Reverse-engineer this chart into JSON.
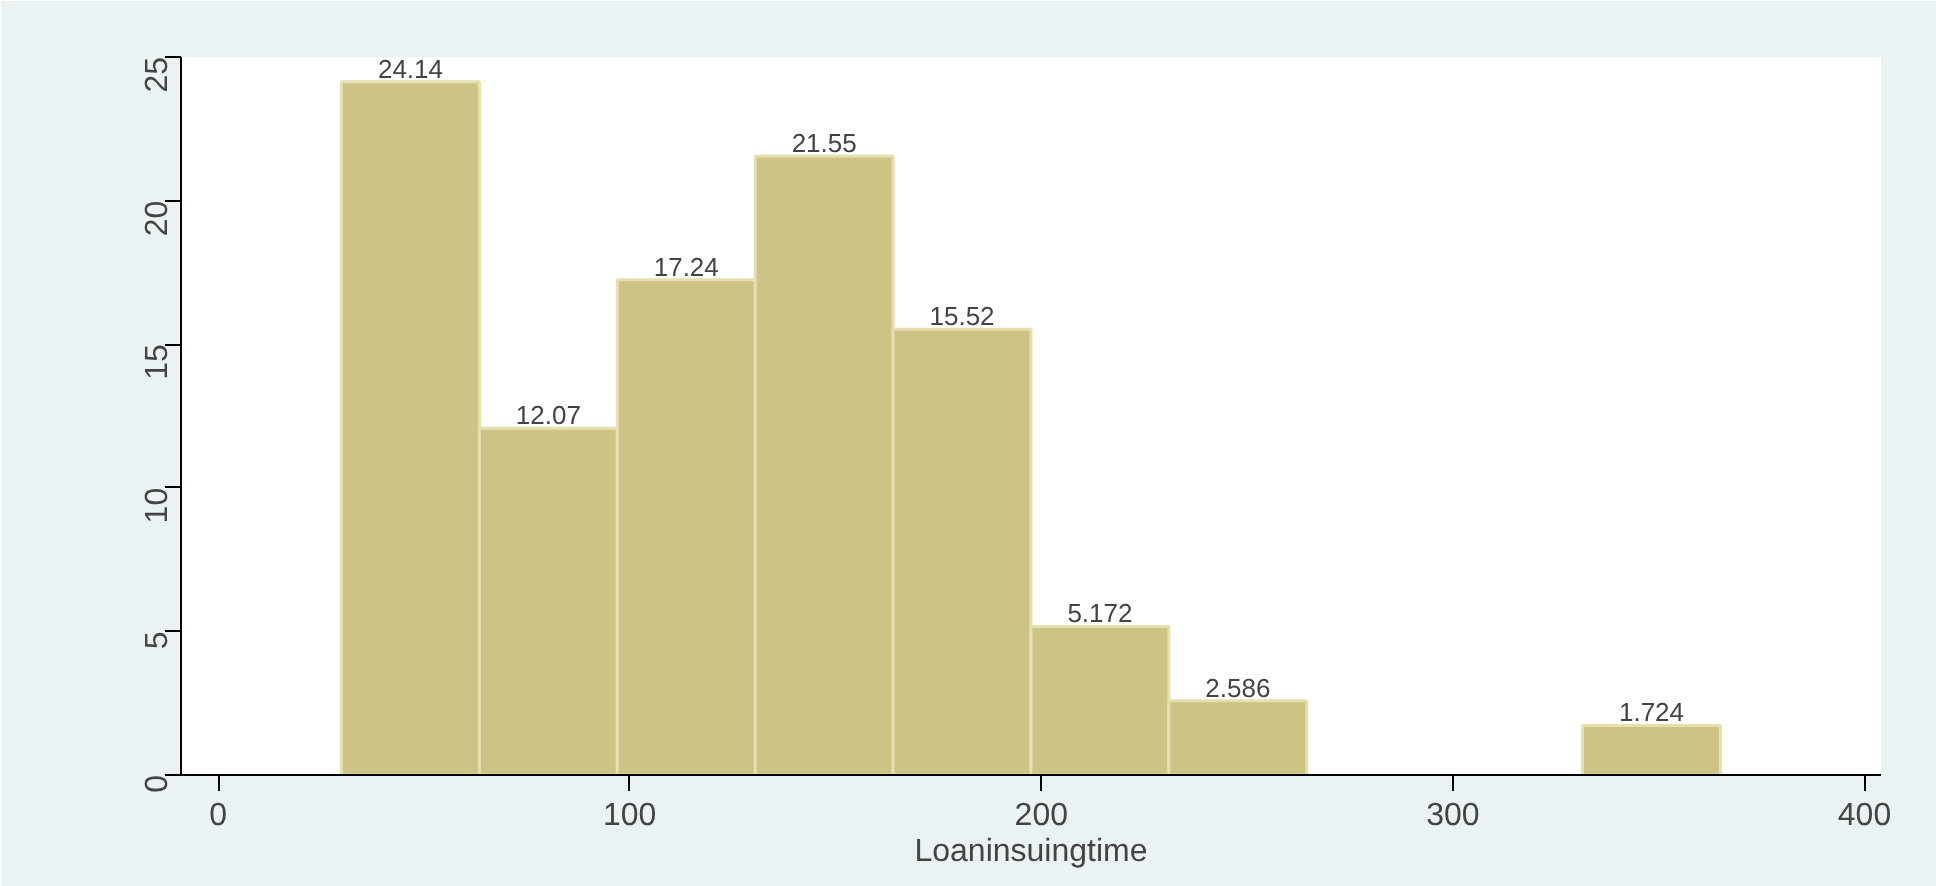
{
  "chart_data": {
    "type": "histogram",
    "xlabel": "Loaninsuingtime",
    "bins": [
      30,
      63.5,
      97,
      130.5,
      164,
      197.5,
      231,
      264.5,
      298,
      331.5,
      365
    ],
    "values": [
      24.14,
      12.07,
      17.24,
      21.55,
      15.52,
      5.172,
      2.586,
      0,
      0,
      1.724
    ],
    "value_labels": [
      "24.14",
      "12.07",
      "17.24",
      "21.55",
      "15.52",
      "5.172",
      "2.586",
      null,
      null,
      "1.724"
    ],
    "color": "#cdc385",
    "xlim": [
      -9,
      404
    ],
    "xticks": [
      0,
      100,
      200,
      300,
      400
    ],
    "ylim": [
      0,
      25
    ],
    "yticks": [
      0,
      5,
      10,
      15,
      20,
      25
    ],
    "grid": false
  }
}
